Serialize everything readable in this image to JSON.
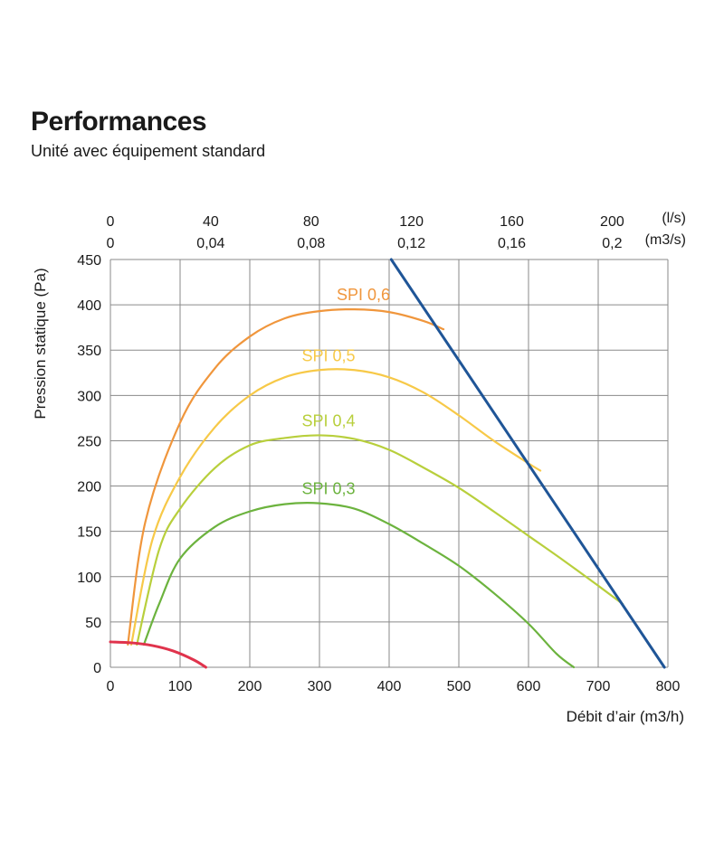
{
  "title": "Performances",
  "subtitle": "Unité avec équipement standard",
  "chart_data": {
    "type": "line",
    "xlabel": "Débit d’air (m3/h)",
    "ylabel": "Pression statique  (Pa)",
    "xlim": [
      0,
      800
    ],
    "ylim": [
      0,
      450
    ],
    "grid": true,
    "x_ticks": [
      "0",
      "100",
      "200",
      "300",
      "400",
      "500",
      "600",
      "700",
      "800"
    ],
    "y_ticks": [
      "0",
      "50",
      "100",
      "150",
      "200",
      "250",
      "300",
      "350",
      "400",
      "450"
    ],
    "top_axis": {
      "ls_unit": "(l/s)",
      "m3s_unit": "(m3/s)",
      "ls_ticks": [
        "0",
        "40",
        "80",
        "120",
        "160",
        "200"
      ],
      "m3s_ticks": [
        "0",
        "0,04",
        "0,08",
        "0,12",
        "0,16",
        "0,2"
      ]
    },
    "series": [
      {
        "name": "SPI 0,6",
        "color": "#f0963c",
        "x": [
          25,
          50,
          100,
          150,
          200,
          250,
          300,
          350,
          400,
          450,
          478
        ],
        "y": [
          25,
          160,
          270,
          330,
          365,
          385,
          393,
          395,
          392,
          382,
          373
        ]
      },
      {
        "name": "SPI 0,5",
        "color": "#f7c948",
        "x": [
          30,
          60,
          100,
          150,
          200,
          250,
          300,
          350,
          400,
          450,
          500,
          550,
          600,
          617
        ],
        "y": [
          25,
          140,
          210,
          265,
          300,
          320,
          328,
          328,
          320,
          303,
          278,
          250,
          225,
          217
        ]
      },
      {
        "name": "SPI 0,4",
        "color": "#b8cf3c",
        "x": [
          38,
          70,
          100,
          150,
          200,
          250,
          300,
          350,
          400,
          450,
          500,
          550,
          600,
          650,
          700,
          735
        ],
        "y": [
          25,
          130,
          175,
          220,
          245,
          253,
          256,
          252,
          240,
          220,
          198,
          172,
          145,
          118,
          90,
          70
        ]
      },
      {
        "name": "SPI 0,3",
        "color": "#6cb33e",
        "x": [
          48,
          70,
          100,
          150,
          200,
          250,
          300,
          350,
          400,
          450,
          500,
          550,
          600,
          640,
          665
        ],
        "y": [
          25,
          70,
          120,
          155,
          172,
          180,
          181,
          175,
          158,
          136,
          112,
          82,
          48,
          15,
          0
        ]
      },
      {
        "name": "",
        "color": "#1f5597",
        "x": [
          403,
          795
        ],
        "y": [
          450,
          0
        ]
      },
      {
        "name": "",
        "color": "#e0334c",
        "x": [
          0,
          30,
          60,
          90,
          120,
          137
        ],
        "y": [
          28,
          27,
          24,
          18,
          8,
          0
        ]
      }
    ]
  }
}
